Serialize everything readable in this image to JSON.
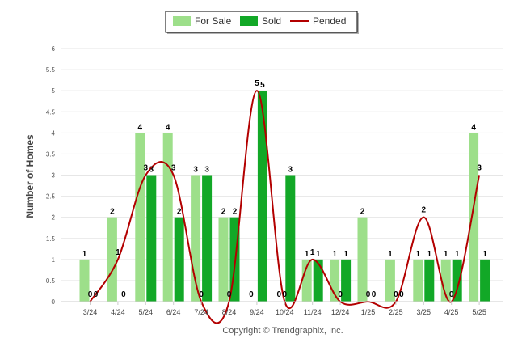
{
  "chart_data": {
    "type": "bar",
    "ylabel": "Number of Homes",
    "xlabel": "",
    "ylim": [
      0,
      6
    ],
    "yticks": [
      "0",
      "0.5",
      "1",
      "1.5",
      "2",
      "2.5",
      "3",
      "3.5",
      "4",
      "4.5",
      "5",
      "5.5",
      "6"
    ],
    "grid": true,
    "legend_position": "top-center",
    "categories": [
      "3/24",
      "4/24",
      "5/24",
      "6/24",
      "7/24",
      "8/24",
      "9/24",
      "10/24",
      "11/24",
      "12/24",
      "1/25",
      "2/25",
      "3/25",
      "4/25",
      "5/25"
    ],
    "series": [
      {
        "name": "For Sale",
        "kind": "bar",
        "color": "#9ddf8a",
        "values": [
          1,
          2,
          4,
          4,
          3,
          2,
          0,
          0,
          1,
          1,
          2,
          1,
          1,
          1,
          4
        ]
      },
      {
        "name": "Sold",
        "kind": "bar",
        "color": "#12a827",
        "values": [
          0,
          0,
          3,
          2,
          3,
          2,
          5,
          3,
          1,
          1,
          0,
          0,
          1,
          1,
          1
        ]
      },
      {
        "name": "Pended",
        "kind": "line",
        "color": "#b30000",
        "values": [
          0,
          1,
          3,
          3,
          0,
          0,
          5,
          0,
          1,
          0,
          0,
          0,
          2,
          0,
          3
        ]
      }
    ]
  },
  "footer": {
    "copyright": "Copyright © Trendgraphix, Inc."
  }
}
